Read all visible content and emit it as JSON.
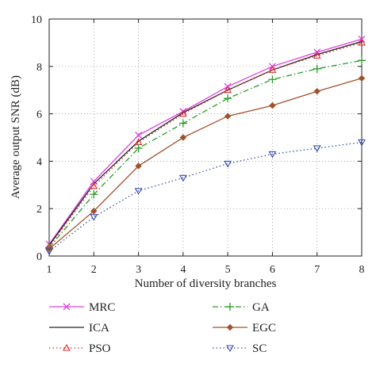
{
  "chart_data": {
    "type": "line",
    "title": "",
    "xlabel": "Number of diversity branches",
    "ylabel": "Average output SNR (dB)",
    "xlim": [
      1,
      8
    ],
    "ylim": [
      0,
      10
    ],
    "grid": true,
    "x": [
      1,
      2,
      3,
      4,
      5,
      6,
      7,
      8
    ],
    "xticks": [
      "1",
      "2",
      "3",
      "4",
      "5",
      "6",
      "7",
      "8"
    ],
    "yticks": [
      "0",
      "2",
      "4",
      "6",
      "8",
      "10"
    ],
    "legend_position": "bottom",
    "series": [
      {
        "name": "MRC",
        "color": "#e040e0",
        "marker": "x",
        "dash": "solid",
        "values": [
          0.5,
          3.15,
          5.1,
          6.1,
          7.15,
          8.0,
          8.6,
          9.15
        ]
      },
      {
        "name": "ICA",
        "color": "#222222",
        "marker": "none",
        "dash": "solid",
        "values": [
          0.45,
          3.05,
          4.85,
          6.05,
          7.0,
          7.85,
          8.5,
          9.05
        ]
      },
      {
        "name": "PSO",
        "color": "#e03030",
        "marker": "triangle-up",
        "dash": "dotted",
        "values": [
          0.4,
          2.95,
          4.8,
          6.0,
          7.0,
          7.85,
          8.45,
          9.0
        ]
      },
      {
        "name": "GA",
        "color": "#2a9a2a",
        "marker": "plus",
        "dash": "dashdot",
        "values": [
          0.35,
          2.6,
          4.55,
          5.6,
          6.65,
          7.45,
          7.9,
          8.25
        ]
      },
      {
        "name": "EGC",
        "color": "#a0522d",
        "marker": "diamond",
        "dash": "solid",
        "values": [
          0.3,
          1.9,
          3.8,
          5.0,
          5.9,
          6.35,
          6.95,
          7.5
        ]
      },
      {
        "name": "SC",
        "color": "#3a4fb0",
        "marker": "triangle-down",
        "dash": "dotted",
        "values": [
          0.2,
          1.65,
          2.75,
          3.3,
          3.9,
          4.3,
          4.55,
          4.8
        ]
      }
    ]
  }
}
